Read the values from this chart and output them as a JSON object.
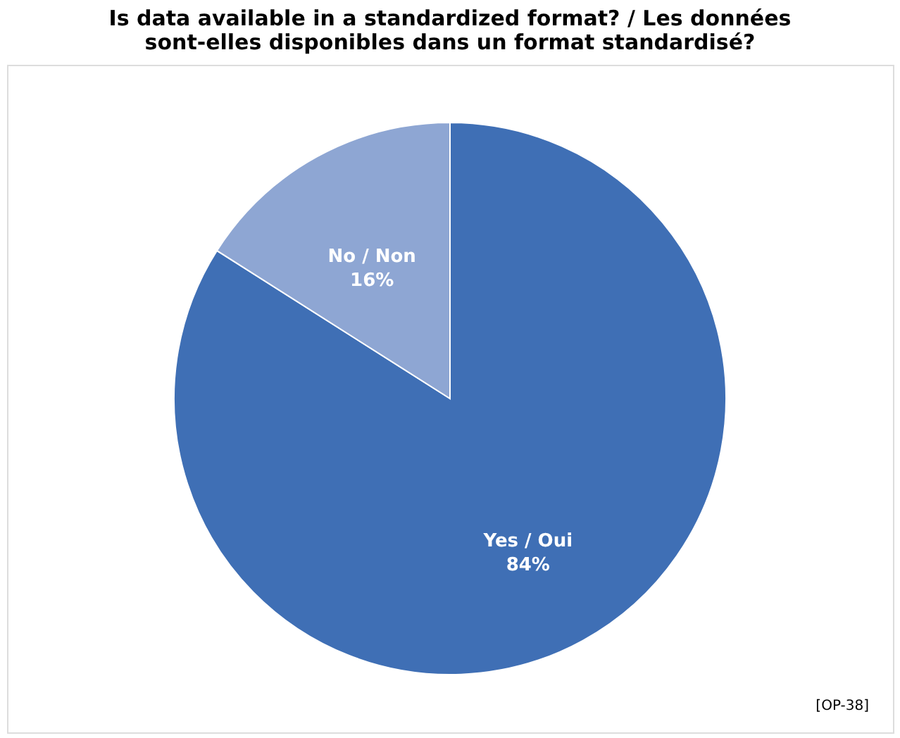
{
  "chart_data": {
    "type": "pie",
    "title": [
      "Is data available in a standardized format? / Les données",
      "sont-elles disponibles dans un format standardisé?"
    ],
    "categories": [
      "Yes / Oui",
      "No / Non"
    ],
    "values": [
      84,
      16
    ],
    "colors": [
      "#3f6fb5",
      "#8ea6d3"
    ],
    "value_labels": [
      "84%",
      "16%"
    ],
    "annotations": [
      "[OP-38]"
    ],
    "legend": false
  }
}
